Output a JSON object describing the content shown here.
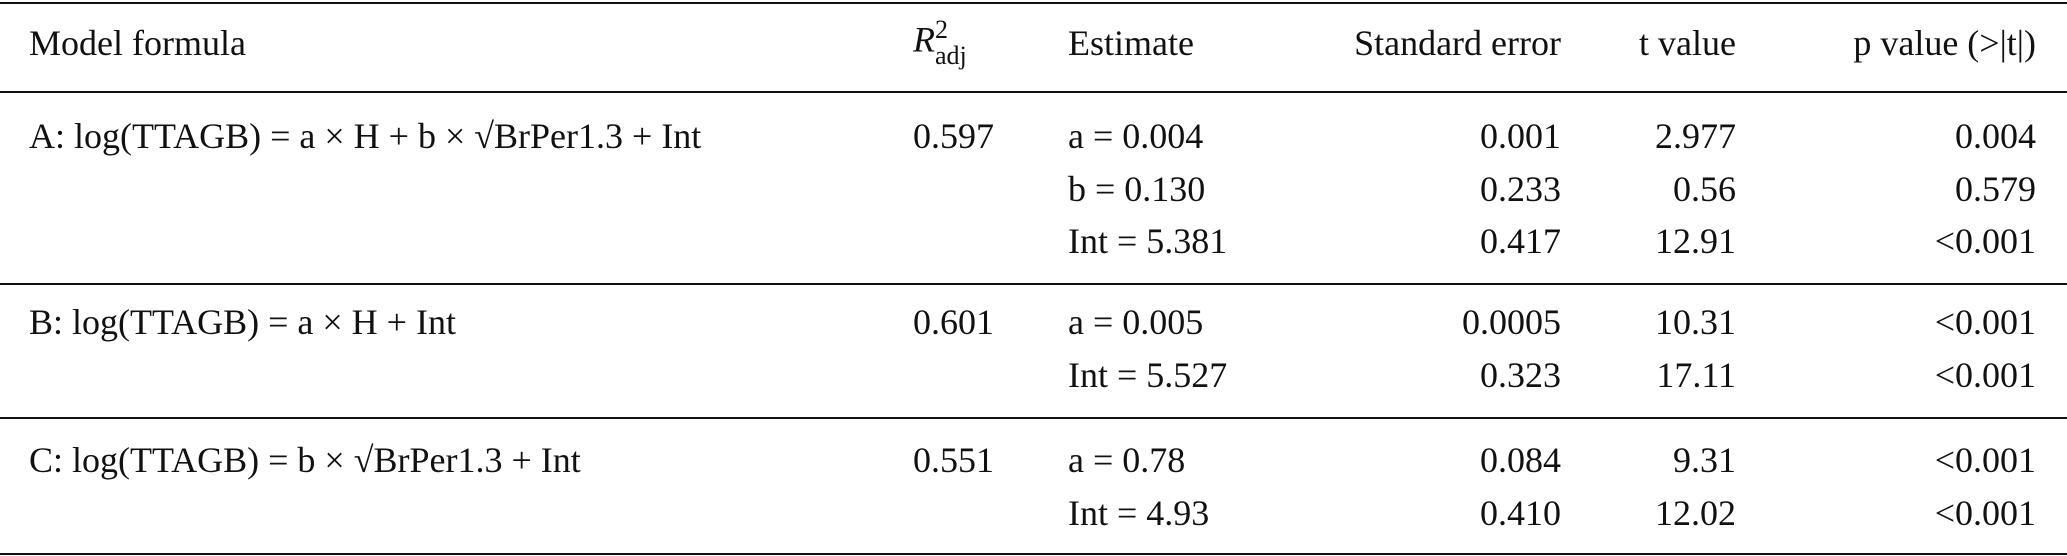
{
  "header": [
    "Model formula",
    {
      "base": "R",
      "sup": "2",
      "sub": "adj"
    },
    "Estimate",
    "Standard error",
    "t value",
    "p value (>|t|)"
  ],
  "groups": [
    {
      "formula": "A: log(TTAGB) = a × H + b × √BrPer1.3 + Int",
      "r2": "0.597",
      "lines": [
        [
          "a = 0.004",
          "0.001",
          "2.977",
          "0.004"
        ],
        [
          "b = 0.130",
          "0.233",
          "0.56",
          "0.579"
        ],
        [
          "Int = 5.381",
          "0.417",
          "12.91",
          "<0.001"
        ]
      ]
    },
    {
      "formula": "B: log(TTAGB) = a × H + Int",
      "r2": "0.601",
      "lines": [
        [
          "a = 0.005",
          "0.0005",
          "10.31",
          "<0.001"
        ],
        [
          "Int = 5.527",
          "0.323",
          "17.11",
          "<0.001"
        ]
      ]
    },
    {
      "formula": "C: log(TTAGB) = b × √BrPer1.3 + Int",
      "r2": "0.551",
      "lines": [
        [
          "a = 0.78",
          "0.084",
          "9.31",
          "<0.001"
        ],
        [
          "Int = 4.93",
          "0.410",
          "12.02",
          "<0.001"
        ]
      ]
    }
  ]
}
